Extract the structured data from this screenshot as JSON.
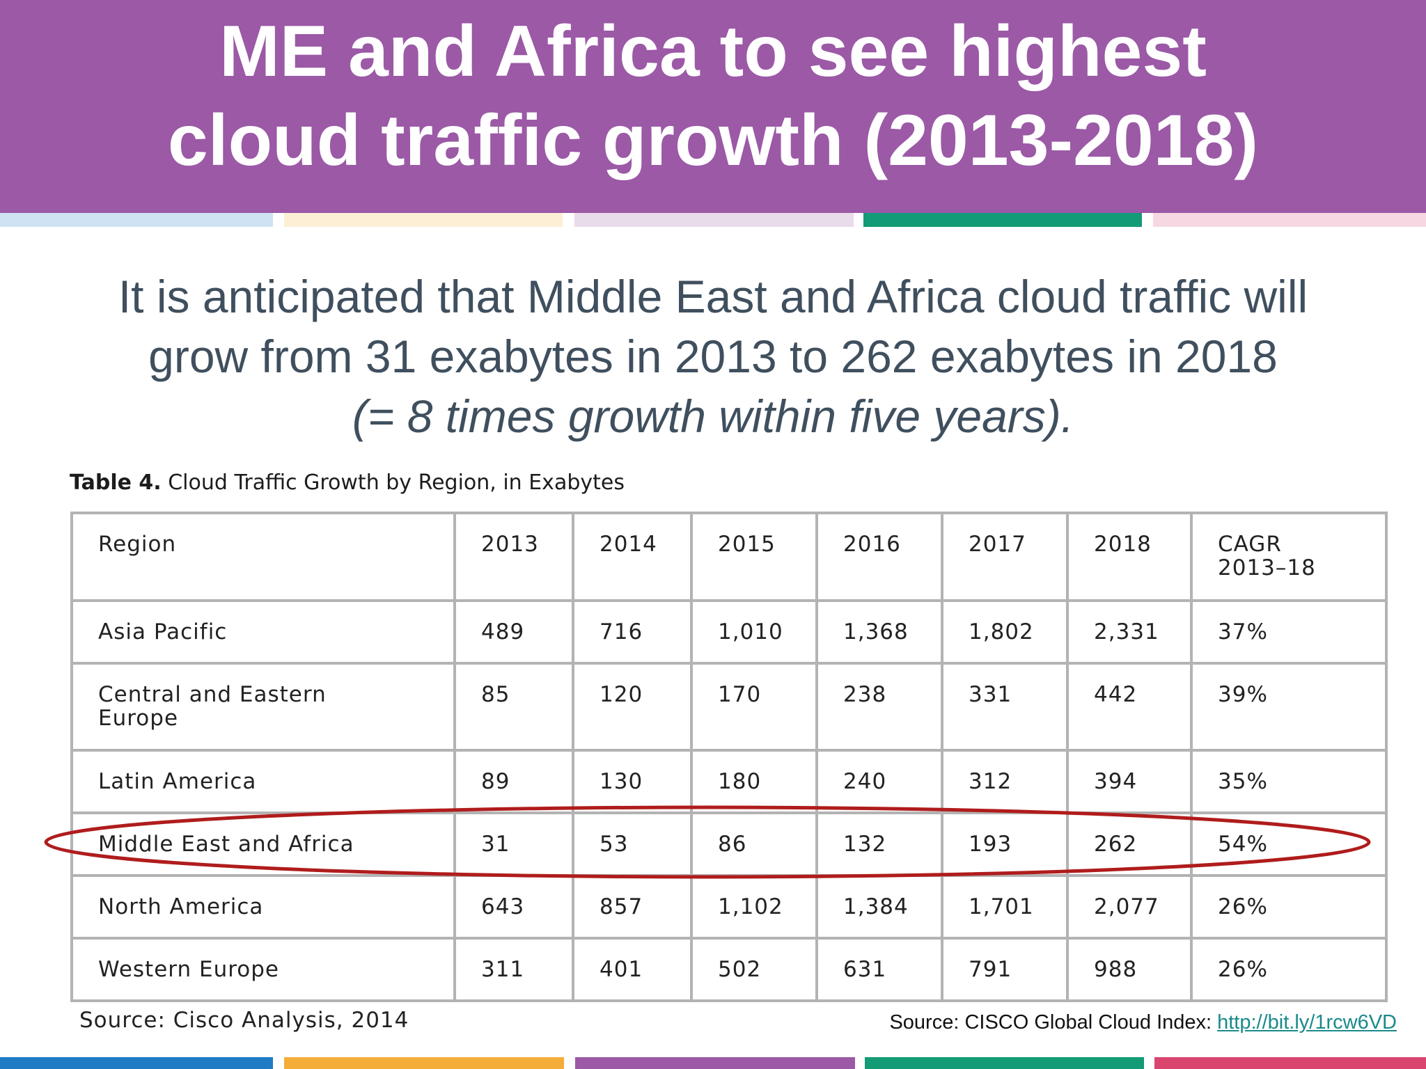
{
  "header": {
    "title_line1": "ME and Africa to see highest",
    "title_line2": "cloud traffic growth (2013-2018)"
  },
  "intro": {
    "line1": "It is anticipated that Middle East and Africa cloud traffic will",
    "line2": "grow from 31 exabytes in 2013 to 262 exabytes in 2018",
    "line3": "(= 8 times growth within five years)."
  },
  "table": {
    "caption_label": "Table 4.",
    "caption_text": "Cloud Traffic Growth by Region, in Exabytes",
    "headers": [
      "Region",
      "2013",
      "2014",
      "2015",
      "2016",
      "2017",
      "2018",
      "CAGR 2013–18"
    ],
    "rows": [
      [
        "Asia Pacific",
        "489",
        "716",
        "1,010",
        "1,368",
        "1,802",
        "2,331",
        "37%"
      ],
      [
        "Central and Eastern Europe",
        "85",
        "120",
        "170",
        "238",
        "331",
        "442",
        "39%"
      ],
      [
        "Latin America",
        "89",
        "130",
        "180",
        "240",
        "312",
        "394",
        "35%"
      ],
      [
        "Middle East and Africa",
        "31",
        "53",
        "86",
        "132",
        "193",
        "262",
        "54%"
      ],
      [
        "North America",
        "643",
        "857",
        "1,102",
        "1,384",
        "1,701",
        "2,077",
        "26%"
      ],
      [
        "Western Europe",
        "311",
        "401",
        "502",
        "631",
        "791",
        "988",
        "26%"
      ]
    ],
    "source": "Source: Cisco Analysis, 2014"
  },
  "footer": {
    "source_label": "Source:  CISCO Global Cloud Index: ",
    "source_link": "http://bit.ly/1rcw6VD"
  },
  "colors": {
    "header_bg": "#9b59a6",
    "highlight_ellipse": "#b01c1c",
    "top_stripes": [
      "#cfe2f3",
      "#fdefd6",
      "#e9dcea",
      "#139b76",
      "#f7d8e2"
    ],
    "bottom_stripes": [
      "#1f7bc4",
      "#f5ad3a",
      "#9b59a6",
      "#139b76",
      "#d9456f"
    ]
  }
}
